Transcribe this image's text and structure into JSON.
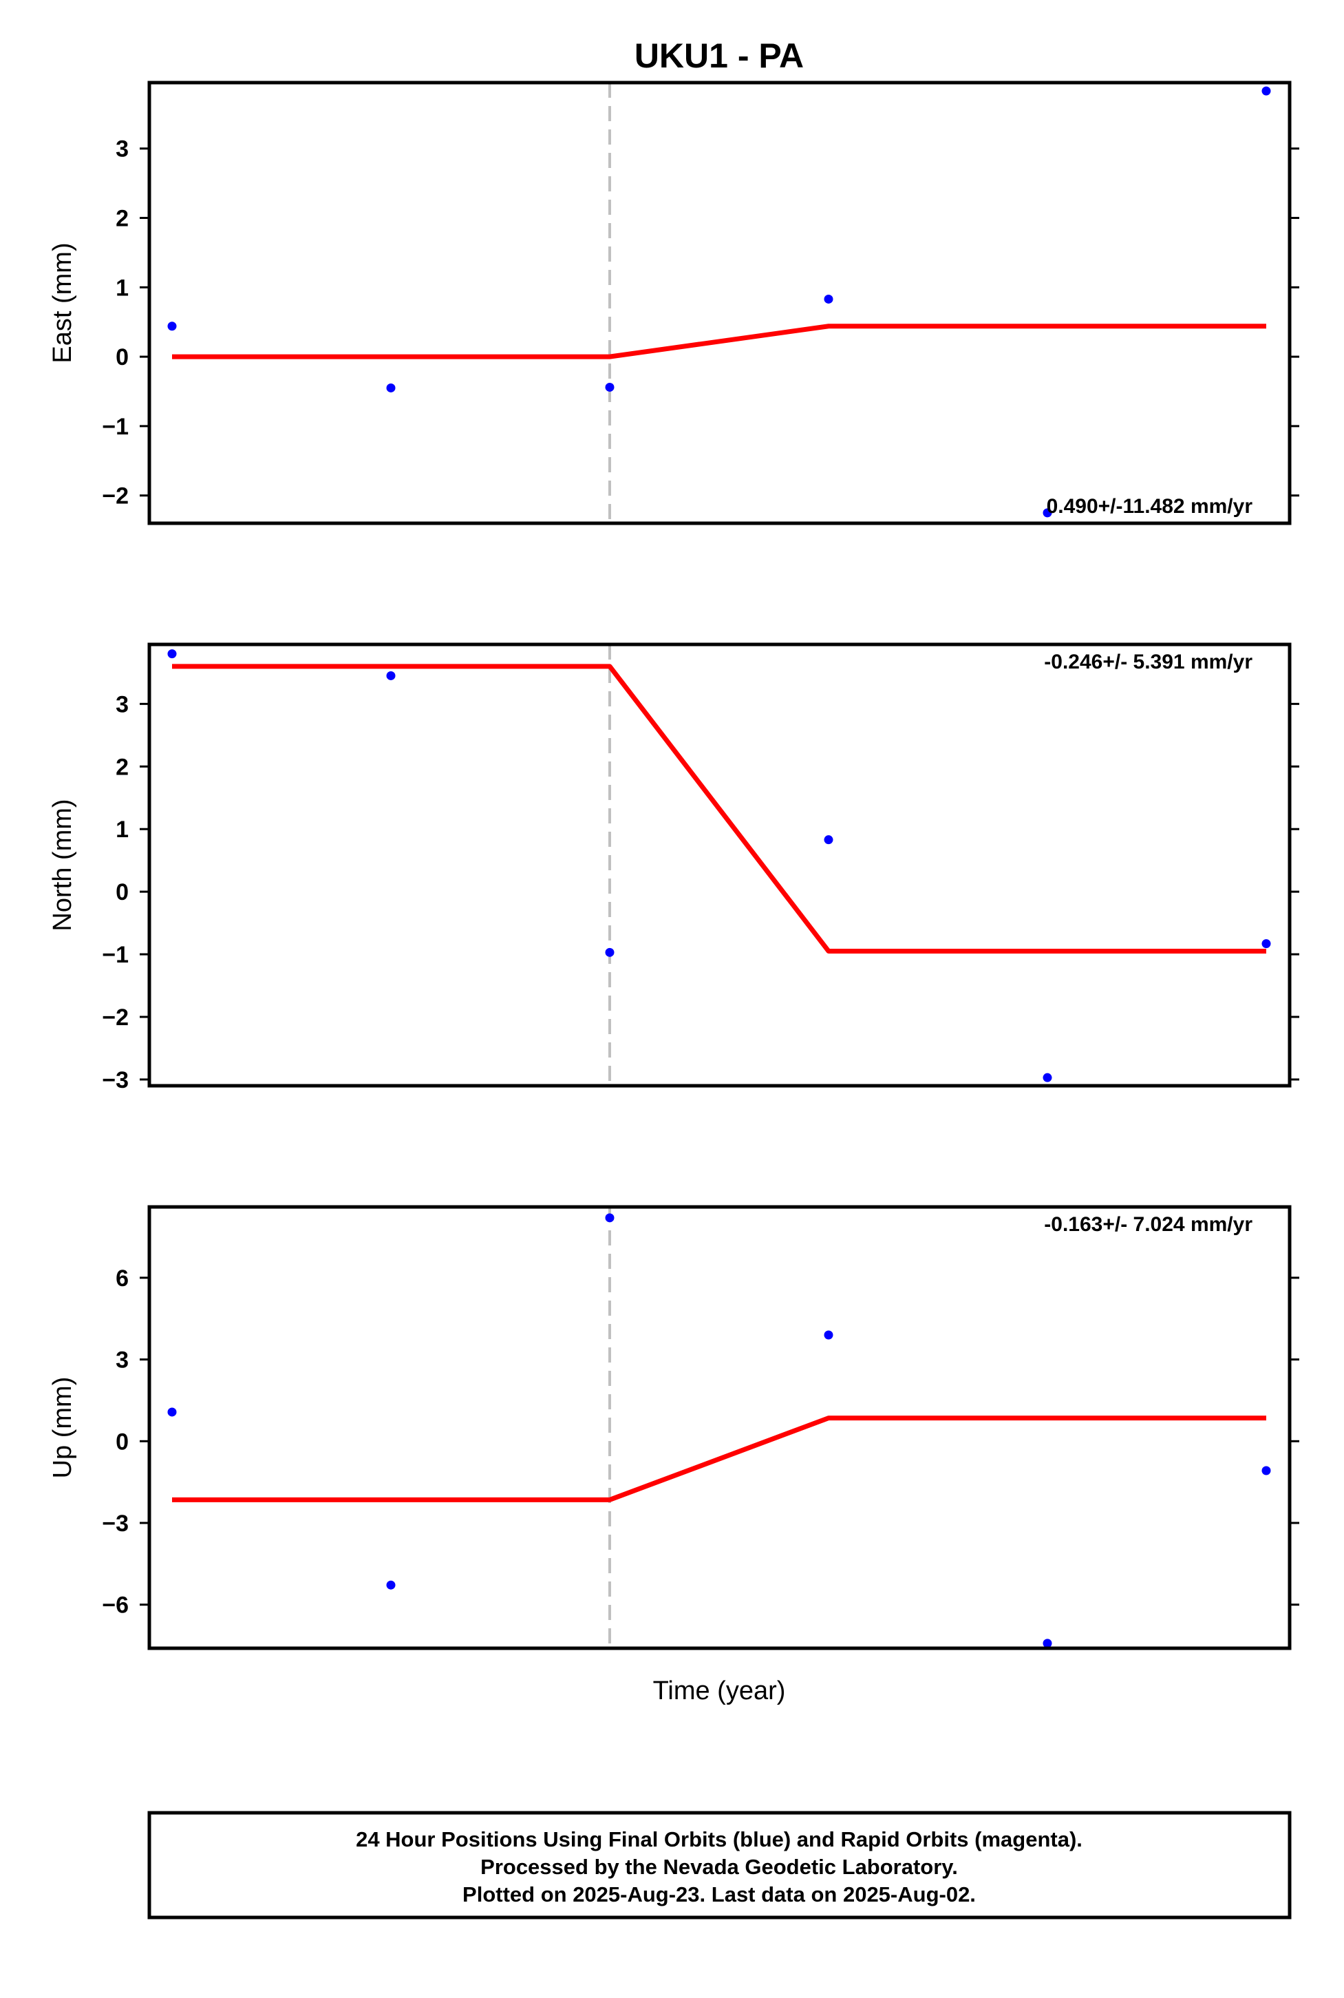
{
  "title": "UKU1 - PA",
  "xlabel": "Time (year)",
  "footer": {
    "lines": [
      "24 Hour Positions Using Final Orbits (blue) and Rapid Orbits (magenta).",
      "Processed by the Nevada Geodetic Laboratory.",
      "Plotted on 2025-Aug-23. Last data on 2025-Aug-02."
    ]
  },
  "colors": {
    "points": "#0000ff",
    "model": "#ff0000",
    "event_line": "#c0c0c0",
    "frame": "#000000"
  },
  "chart_data": [
    {
      "type": "scatter",
      "ylabel": "East (mm)",
      "ylim": [
        -2.4,
        3.95
      ],
      "yticks": [
        -2,
        -1,
        0,
        1,
        2,
        3
      ],
      "rate_label": "0.490+/-11.482 mm/yr",
      "rate_position": "bottom-right",
      "x": [
        0,
        1,
        2,
        3,
        4,
        5
      ],
      "y": [
        0.44,
        -0.45,
        -0.44,
        0.83,
        -2.25,
        3.83
      ],
      "model_x": [
        0,
        2,
        3,
        5
      ],
      "model_y": [
        0.0,
        0.0,
        0.44,
        0.44
      ],
      "event_x": 2
    },
    {
      "type": "scatter",
      "ylabel": "North (mm)",
      "ylim": [
        -3.1,
        3.95
      ],
      "yticks": [
        -3,
        -2,
        -1,
        0,
        1,
        2,
        3
      ],
      "rate_label": "-0.246+/- 5.391 mm/yr",
      "rate_position": "top-right",
      "x": [
        0,
        1,
        2,
        3,
        4,
        5
      ],
      "y": [
        3.8,
        3.45,
        -0.97,
        0.83,
        -2.97,
        -0.83
      ],
      "model_x": [
        0,
        2,
        3,
        5
      ],
      "model_y": [
        3.6,
        3.6,
        -0.95,
        -0.95
      ],
      "event_x": 2
    },
    {
      "type": "scatter",
      "ylabel": "Up (mm)",
      "ylim": [
        -7.6,
        8.6
      ],
      "yticks": [
        -6,
        -3,
        0,
        3,
        6
      ],
      "rate_label": "-0.163+/- 7.024 mm/yr",
      "rate_position": "top-right",
      "x": [
        0,
        1,
        2,
        3,
        4,
        5
      ],
      "y": [
        1.07,
        -5.28,
        8.2,
        3.9,
        -7.42,
        -1.08
      ],
      "model_x": [
        0,
        2,
        3,
        5
      ],
      "model_y": [
        -2.15,
        -2.15,
        0.85,
        0.85
      ],
      "event_x": 2
    }
  ]
}
